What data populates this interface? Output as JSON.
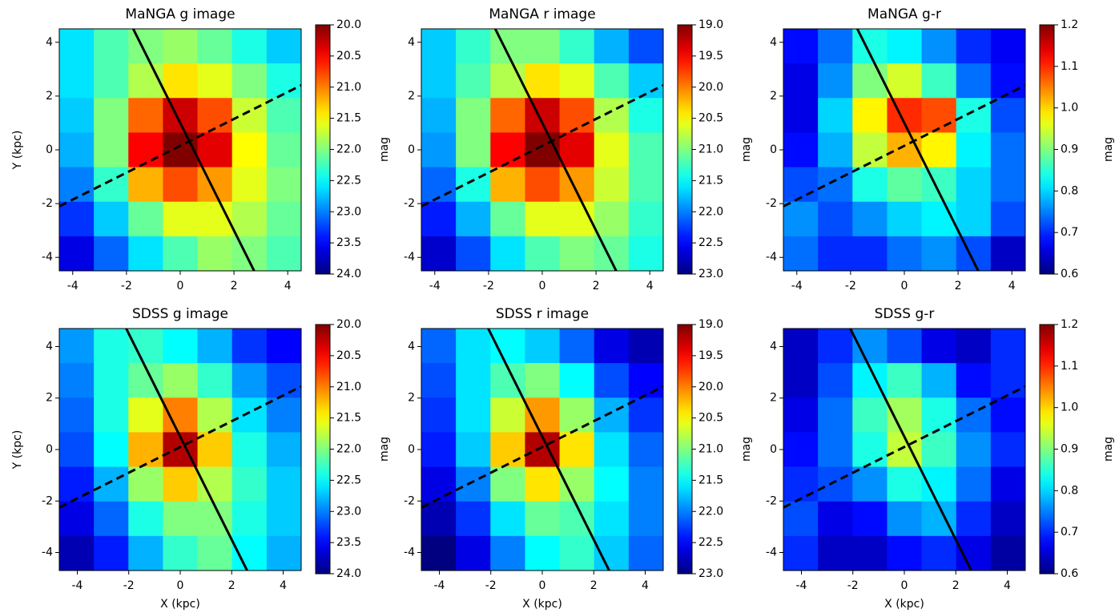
{
  "chart_data": [
    {
      "type": "heatmap",
      "title": "MaNGA g image",
      "ylabel": "Y (kpc)",
      "colorbar_label": "mag",
      "xlim": [
        -4.5,
        4.5
      ],
      "ylim": [
        -4.5,
        4.5
      ],
      "xticks": [
        -4,
        -2,
        0,
        2,
        4
      ],
      "yticks": [
        -4,
        -2,
        0,
        2,
        4
      ],
      "clim": [
        24,
        20
      ],
      "cticks": [
        {
          "value": 20,
          "label": "20.0"
        },
        20.5,
        {
          "value": 21,
          "label": "21.0"
        },
        21.5,
        {
          "value": 22,
          "label": "22.0"
        },
        22.5,
        {
          "value": 23,
          "label": "23.0"
        },
        23.5,
        {
          "value": 24,
          "label": "24.0"
        }
      ],
      "values": [
        [
          22.6,
          22.2,
          22.0,
          21.9,
          22.1,
          22.4,
          22.7
        ],
        [
          22.6,
          22.2,
          21.8,
          21.4,
          21.6,
          22.0,
          22.4
        ],
        [
          22.7,
          22.0,
          20.9,
          20.3,
          20.8,
          21.7,
          22.2
        ],
        [
          22.8,
          22.0,
          20.5,
          20.0,
          20.4,
          21.5,
          22.1
        ],
        [
          23.0,
          22.3,
          21.2,
          20.8,
          21.1,
          21.6,
          22.0
        ],
        [
          23.3,
          22.7,
          22.1,
          21.6,
          21.6,
          21.8,
          22.1
        ],
        [
          23.6,
          23.1,
          22.6,
          22.2,
          21.9,
          22.0,
          22.2
        ]
      ],
      "lines": [
        {
          "style": "solid",
          "x": [
            -1.75,
            2.75
          ],
          "y": [
            4.5,
            -4.5
          ]
        },
        {
          "style": "dashed",
          "x": [
            -4.5,
            4.5
          ],
          "y": [
            -2.1,
            2.4
          ]
        }
      ]
    },
    {
      "type": "heatmap",
      "title": "MaNGA r image",
      "colorbar_label": "mag",
      "xlim": [
        -4.5,
        4.5
      ],
      "ylim": [
        -4.5,
        4.5
      ],
      "xticks": [
        -4,
        -2,
        0,
        2,
        4
      ],
      "yticks": [
        -4,
        -2,
        0,
        2,
        4
      ],
      "clim": [
        23,
        19
      ],
      "cticks": [
        {
          "value": 19,
          "label": "19.0"
        },
        19.5,
        {
          "value": 20,
          "label": "20.0"
        },
        20.5,
        {
          "value": 21,
          "label": "21.0"
        },
        21.5,
        {
          "value": 22,
          "label": "22.0"
        },
        22.5,
        {
          "value": 23,
          "label": "23.0"
        }
      ],
      "values": [
        [
          21.7,
          21.3,
          21.0,
          21.0,
          21.3,
          21.8,
          22.2
        ],
        [
          21.7,
          21.2,
          20.8,
          20.4,
          20.6,
          21.2,
          21.7
        ],
        [
          21.8,
          21.0,
          19.9,
          19.3,
          19.8,
          20.8,
          21.4
        ],
        [
          21.9,
          21.0,
          19.5,
          19.0,
          19.4,
          20.6,
          21.2
        ],
        [
          22.1,
          21.4,
          20.2,
          19.8,
          20.1,
          20.7,
          21.2
        ],
        [
          22.4,
          21.8,
          21.1,
          20.6,
          20.6,
          20.9,
          21.3
        ],
        [
          22.7,
          22.2,
          21.6,
          21.2,
          21.0,
          21.1,
          21.4
        ]
      ],
      "lines": [
        {
          "style": "solid",
          "x": [
            -1.75,
            2.75
          ],
          "y": [
            4.5,
            -4.5
          ]
        },
        {
          "style": "dashed",
          "x": [
            -4.5,
            4.5
          ],
          "y": [
            -2.1,
            2.4
          ]
        }
      ]
    },
    {
      "type": "heatmap",
      "title": "MaNGA g-r",
      "colorbar_label": "mag",
      "xlim": [
        -4.5,
        4.5
      ],
      "ylim": [
        -4.5,
        4.5
      ],
      "xticks": [
        -4,
        -2,
        0,
        2,
        4
      ],
      "yticks": [
        -4,
        -2,
        0,
        2,
        4
      ],
      "clim": [
        0.6,
        1.2
      ],
      "cticks": [
        0.6,
        0.7,
        0.8,
        0.9,
        {
          "value": 1,
          "label": "1.0"
        },
        1.1,
        1.2
      ],
      "values": [
        [
          0.68,
          0.74,
          0.84,
          0.82,
          0.76,
          0.7,
          0.67
        ],
        [
          0.66,
          0.76,
          0.9,
          0.95,
          0.86,
          0.74,
          0.68
        ],
        [
          0.66,
          0.8,
          0.98,
          1.1,
          1.08,
          0.84,
          0.72
        ],
        [
          0.68,
          0.78,
          0.94,
          1.02,
          0.98,
          0.82,
          0.74
        ],
        [
          0.72,
          0.74,
          0.84,
          0.88,
          0.86,
          0.8,
          0.74
        ],
        [
          0.76,
          0.72,
          0.76,
          0.8,
          0.82,
          0.8,
          0.72
        ],
        [
          0.74,
          0.7,
          0.7,
          0.74,
          0.76,
          0.72,
          0.64
        ]
      ],
      "lines": [
        {
          "style": "solid",
          "x": [
            -1.75,
            2.75
          ],
          "y": [
            4.5,
            -4.5
          ]
        },
        {
          "style": "dashed",
          "x": [
            -4.5,
            4.5
          ],
          "y": [
            -2.1,
            2.4
          ]
        }
      ]
    },
    {
      "type": "heatmap",
      "title": "SDSS g image",
      "xlabel": "X (kpc)",
      "ylabel": "Y (kpc)",
      "colorbar_label": "mag",
      "xlim": [
        -4.7,
        4.7
      ],
      "ylim": [
        -4.7,
        4.7
      ],
      "xticks": [
        -4,
        -2,
        0,
        2,
        4
      ],
      "yticks": [
        -4,
        -2,
        0,
        2,
        4
      ],
      "clim": [
        24,
        20
      ],
      "cticks": [
        {
          "value": 20,
          "label": "20.0"
        },
        20.5,
        {
          "value": 21,
          "label": "21.0"
        },
        21.5,
        {
          "value": 22,
          "label": "22.0"
        },
        22.5,
        {
          "value": 23,
          "label": "23.0"
        },
        23.5,
        {
          "value": 24,
          "label": "24.0"
        }
      ],
      "values": [
        [
          22.9,
          22.4,
          22.3,
          22.5,
          22.8,
          23.3,
          23.5
        ],
        [
          23.0,
          22.4,
          22.1,
          21.9,
          22.3,
          22.9,
          23.2
        ],
        [
          23.1,
          22.4,
          21.6,
          21.0,
          21.8,
          22.6,
          23.0
        ],
        [
          23.2,
          22.5,
          21.2,
          20.2,
          21.3,
          22.4,
          22.8
        ],
        [
          23.4,
          22.8,
          21.9,
          21.3,
          21.8,
          22.3,
          22.7
        ],
        [
          23.6,
          23.1,
          22.4,
          22.0,
          22.0,
          22.4,
          22.7
        ],
        [
          23.8,
          23.4,
          22.8,
          22.3,
          22.1,
          22.5,
          22.8
        ]
      ],
      "lines": [
        {
          "style": "solid",
          "x": [
            -2.1,
            2.6
          ],
          "y": [
            4.7,
            -4.7
          ]
        },
        {
          "style": "dashed",
          "x": [
            -4.7,
            4.7
          ],
          "y": [
            -2.25,
            2.45
          ]
        }
      ]
    },
    {
      "type": "heatmap",
      "title": "SDSS r image",
      "xlabel": "X (kpc)",
      "colorbar_label": "mag",
      "xlim": [
        -4.7,
        4.7
      ],
      "ylim": [
        -4.7,
        4.7
      ],
      "xticks": [
        -4,
        -2,
        0,
        2,
        4
      ],
      "yticks": [
        -4,
        -2,
        0,
        2,
        4
      ],
      "clim": [
        23,
        19
      ],
      "cticks": [
        {
          "value": 19,
          "label": "19.0"
        },
        19.5,
        {
          "value": 20,
          "label": "20.0"
        },
        20.5,
        {
          "value": 21,
          "label": "21.0"
        },
        21.5,
        {
          "value": 22,
          "label": "22.0"
        },
        22.5,
        {
          "value": 23,
          "label": "23.0"
        }
      ],
      "values": [
        [
          22.1,
          21.6,
          21.5,
          21.7,
          22.1,
          22.6,
          22.8
        ],
        [
          22.2,
          21.6,
          21.2,
          21.0,
          21.5,
          22.2,
          22.5
        ],
        [
          22.3,
          21.6,
          20.7,
          20.1,
          20.9,
          21.8,
          22.3
        ],
        [
          22.4,
          21.7,
          20.3,
          19.2,
          20.4,
          21.6,
          22.1
        ],
        [
          22.6,
          22.0,
          21.0,
          20.4,
          20.9,
          21.5,
          22.0
        ],
        [
          22.8,
          22.3,
          21.6,
          21.1,
          21.2,
          21.6,
          22.0
        ],
        [
          23.0,
          22.6,
          22.0,
          21.5,
          21.3,
          21.7,
          22.1
        ]
      ],
      "lines": [
        {
          "style": "solid",
          "x": [
            -2.1,
            2.6
          ],
          "y": [
            4.7,
            -4.7
          ]
        },
        {
          "style": "dashed",
          "x": [
            -4.7,
            4.7
          ],
          "y": [
            -2.25,
            2.45
          ]
        }
      ]
    },
    {
      "type": "heatmap",
      "title": "SDSS g-r",
      "xlabel": "X (kpc)",
      "colorbar_label": "mag",
      "xlim": [
        -4.7,
        4.7
      ],
      "ylim": [
        -4.7,
        4.7
      ],
      "xticks": [
        -4,
        -2,
        0,
        2,
        4
      ],
      "yticks": [
        -4,
        -2,
        0,
        2,
        4
      ],
      "clim": [
        0.6,
        1.2
      ],
      "cticks": [
        0.6,
        0.7,
        0.8,
        0.9,
        {
          "value": 1,
          "label": "1.0"
        },
        1.1,
        1.2
      ],
      "values": [
        [
          0.64,
          0.7,
          0.76,
          0.72,
          0.66,
          0.64,
          0.7
        ],
        [
          0.64,
          0.72,
          0.82,
          0.86,
          0.78,
          0.68,
          0.7
        ],
        [
          0.66,
          0.74,
          0.86,
          0.92,
          0.84,
          0.74,
          0.68
        ],
        [
          0.68,
          0.74,
          0.84,
          0.94,
          0.86,
          0.76,
          0.7
        ],
        [
          0.7,
          0.72,
          0.76,
          0.84,
          0.82,
          0.74,
          0.66
        ],
        [
          0.72,
          0.66,
          0.68,
          0.76,
          0.78,
          0.7,
          0.64
        ],
        [
          0.7,
          0.64,
          0.64,
          0.68,
          0.7,
          0.66,
          0.62
        ]
      ],
      "lines": [
        {
          "style": "solid",
          "x": [
            -2.1,
            2.6
          ],
          "y": [
            4.7,
            -4.7
          ]
        },
        {
          "style": "dashed",
          "x": [
            -4.7,
            4.7
          ],
          "y": [
            -2.25,
            2.45
          ]
        }
      ]
    }
  ]
}
